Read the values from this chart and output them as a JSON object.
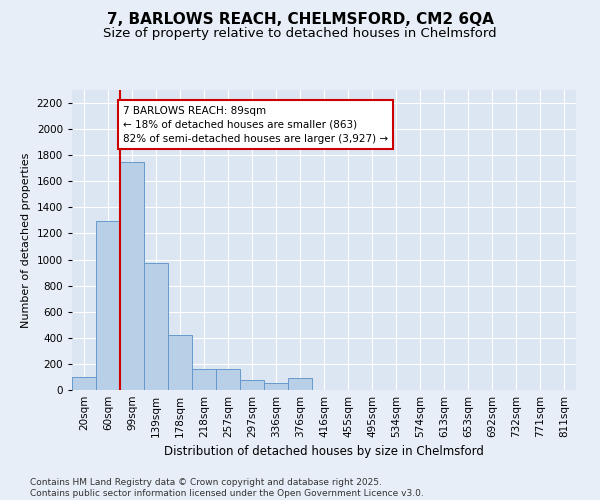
{
  "title_line1": "7, BARLOWS REACH, CHELMSFORD, CM2 6QA",
  "title_line2": "Size of property relative to detached houses in Chelmsford",
  "xlabel": "Distribution of detached houses by size in Chelmsford",
  "ylabel": "Number of detached properties",
  "categories": [
    "20sqm",
    "60sqm",
    "99sqm",
    "139sqm",
    "178sqm",
    "218sqm",
    "257sqm",
    "297sqm",
    "336sqm",
    "376sqm",
    "416sqm",
    "455sqm",
    "495sqm",
    "534sqm",
    "574sqm",
    "613sqm",
    "653sqm",
    "692sqm",
    "732sqm",
    "771sqm",
    "811sqm"
  ],
  "values": [
    100,
    1295,
    1750,
    975,
    420,
    160,
    160,
    75,
    55,
    95,
    0,
    0,
    0,
    0,
    0,
    0,
    0,
    0,
    0,
    0,
    0
  ],
  "bar_color": "#b8cfe8",
  "bar_edge_color": "#6699cc",
  "highlight_line_color": "#cc0000",
  "annotation_text": "7 BARLOWS REACH: 89sqm\n← 18% of detached houses are smaller (863)\n82% of semi-detached houses are larger (3,927) →",
  "annotation_box_facecolor": "#ffffff",
  "annotation_box_edgecolor": "#cc0000",
  "ylim": [
    0,
    2300
  ],
  "yticks": [
    0,
    200,
    400,
    600,
    800,
    1000,
    1200,
    1400,
    1600,
    1800,
    2000,
    2200
  ],
  "bg_color": "#e8eef7",
  "plot_bg_color": "#dce6f2",
  "grid_color": "#ffffff",
  "footer_line1": "Contains HM Land Registry data © Crown copyright and database right 2025.",
  "footer_line2": "Contains public sector information licensed under the Open Government Licence v3.0.",
  "title_fontsize": 11,
  "subtitle_fontsize": 9.5,
  "axis_label_fontsize": 8.5,
  "tick_fontsize": 7.5,
  "annotation_fontsize": 7.5,
  "footer_fontsize": 6.5,
  "ylabel_fontsize": 8
}
